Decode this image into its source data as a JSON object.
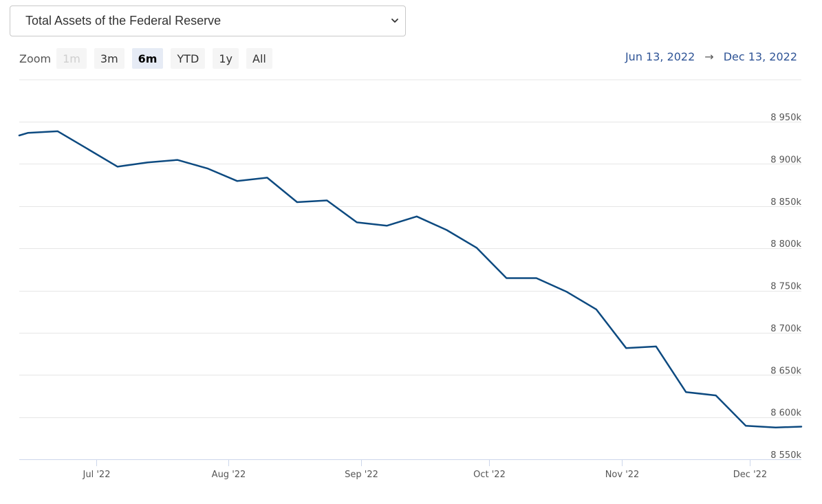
{
  "selector": {
    "value": "Total Assets of the Federal Reserve",
    "icon": "chevron-down-icon"
  },
  "zoom": {
    "label": "Zoom",
    "buttons": [
      {
        "label": "1m",
        "state": "disabled"
      },
      {
        "label": "3m",
        "state": "normal"
      },
      {
        "label": "6m",
        "state": "selected"
      },
      {
        "label": "YTD",
        "state": "normal"
      },
      {
        "label": "1y",
        "state": "normal"
      },
      {
        "label": "All",
        "state": "normal"
      }
    ]
  },
  "range": {
    "from": "Jun 13, 2022",
    "arrow": "→",
    "to": "Dec 13, 2022"
  },
  "chart_data": {
    "type": "line",
    "title": "",
    "xlabel": "",
    "ylabel": "",
    "line_color": "#0d4a80",
    "grid": true,
    "x_range": [
      "2022-06-13",
      "2022-12-13"
    ],
    "ylim": [
      8550,
      8975
    ],
    "y_ticks": [
      8550,
      8600,
      8650,
      8700,
      8750,
      8800,
      8850,
      8900,
      8950
    ],
    "y_tick_labels": [
      "8 550k",
      "8 600k",
      "8 650k",
      "8 700k",
      "8 750k",
      "8 800k",
      "8 850k",
      "8 900k",
      "8 950k"
    ],
    "x_ticks": [
      "2022-07-01",
      "2022-08-01",
      "2022-09-01",
      "2022-10-01",
      "2022-11-01",
      "2022-12-01"
    ],
    "x_tick_labels": [
      "Jul '22",
      "Aug '22",
      "Sep '22",
      "Oct '22",
      "Nov '22",
      "Dec '22"
    ],
    "series": [
      {
        "x": [
          "2022-06-13",
          "2022-06-15",
          "2022-06-22",
          "2022-06-29",
          "2022-07-06",
          "2022-07-13",
          "2022-07-20",
          "2022-07-27",
          "2022-08-03",
          "2022-08-10",
          "2022-08-17",
          "2022-08-24",
          "2022-08-31",
          "2022-09-07",
          "2022-09-14",
          "2022-09-21",
          "2022-09-28",
          "2022-10-05",
          "2022-10-12",
          "2022-10-19",
          "2022-10-26",
          "2022-11-02",
          "2022-11-09",
          "2022-11-16",
          "2022-11-23",
          "2022-11-30",
          "2022-12-07",
          "2022-12-13"
        ],
        "y": [
          8928,
          8931,
          8933,
          8912,
          8891,
          8896,
          8899,
          8889,
          8874,
          8878,
          8849,
          8851,
          8825,
          8821,
          8832,
          8816,
          8795,
          8759,
          8759,
          8743,
          8722,
          8676,
          8678,
          8624,
          8620,
          8584,
          8582,
          8583
        ]
      }
    ]
  }
}
